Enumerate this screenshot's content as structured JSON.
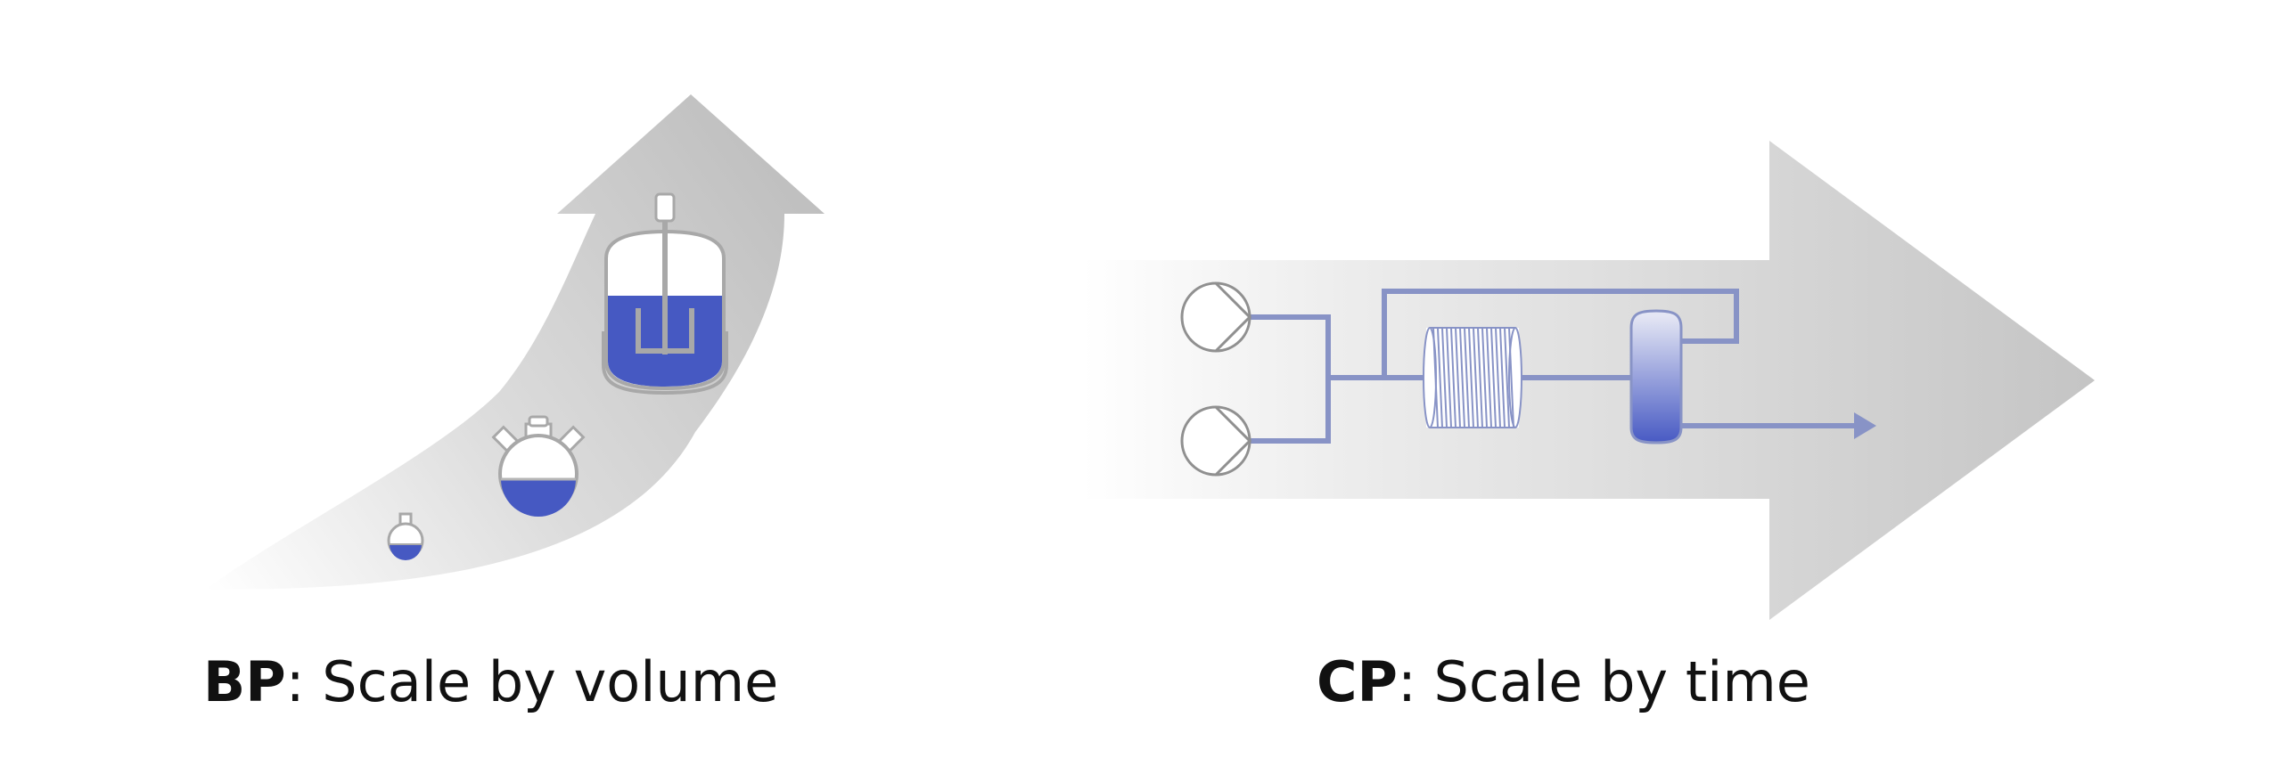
{
  "diagram": {
    "batch": {
      "abbr": "BP",
      "label": ": Scale by volume",
      "vessels": [
        "small-round-flask",
        "three-neck-flask",
        "stirred-tank-reactor"
      ]
    },
    "continuous": {
      "abbr": "CP",
      "label": ": Scale by time",
      "units": [
        "pump",
        "pump",
        "coil-reactor",
        "column-separator",
        "outlet-arrow"
      ]
    },
    "colors": {
      "arrow_gray_dark": "#bdbdbd",
      "arrow_gray_light": "#ffffff",
      "line_periwinkle": "#8893c6",
      "liquid_blue": "#4659c2",
      "vessel_gray": "#a8a8a8"
    }
  }
}
